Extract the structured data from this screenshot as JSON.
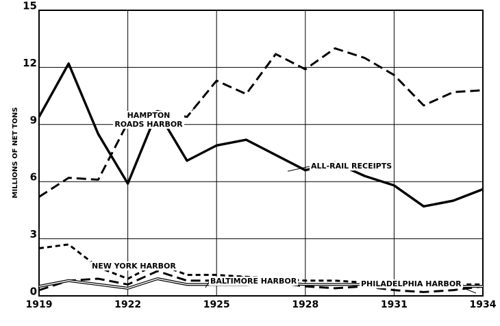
{
  "chart_data": {
    "type": "line",
    "ylabel": "MILLIONS OF NET TONS",
    "x": [
      1919,
      1920,
      1921,
      1922,
      1923,
      1924,
      1925,
      1926,
      1927,
      1928,
      1929,
      1930,
      1931,
      1932,
      1933,
      1934
    ],
    "xlim": [
      1919,
      1934
    ],
    "xticks": [
      1919,
      1922,
      1925,
      1928,
      1931,
      1934
    ],
    "ylim": [
      0,
      15
    ],
    "yticks": [
      0,
      3,
      6,
      9,
      12,
      15
    ],
    "grid": true,
    "series": [
      {
        "name": "HAMPTON ROADS HARBOR",
        "color": "#000000",
        "dash": "long",
        "values": [
          5.2,
          6.2,
          6.1,
          9.1,
          9.7,
          9.4,
          11.3,
          10.6,
          12.7,
          11.9,
          13.0,
          12.5,
          11.6,
          10.0,
          10.7,
          10.8
        ]
      },
      {
        "name": "ALL-RAIL RECEIPTS",
        "color": "#000000",
        "dash": "solid",
        "values": [
          9.4,
          12.2,
          8.5,
          5.9,
          9.7,
          7.1,
          7.9,
          8.2,
          7.4,
          6.6,
          7.0,
          6.3,
          5.8,
          4.7,
          5.0,
          5.6
        ]
      },
      {
        "name": "NEW YORK HARBOR",
        "color": "#000000",
        "dash": "short",
        "values": [
          2.5,
          2.7,
          1.5,
          0.9,
          1.7,
          1.1,
          1.1,
          1.0,
          0.9,
          0.8,
          0.8,
          0.7,
          0.7,
          0.6,
          0.6,
          0.6
        ]
      },
      {
        "name": "BALTIMORE HARBOR",
        "color": "#000000",
        "dash": "long",
        "values": [
          0.3,
          0.8,
          0.9,
          0.6,
          1.3,
          0.8,
          0.8,
          1.0,
          0.7,
          0.5,
          0.4,
          0.5,
          0.3,
          0.2,
          0.3,
          0.5
        ]
      },
      {
        "name": "PHILADELPHIA HARBOR",
        "color": "#000000",
        "dash": "double",
        "values": [
          0.5,
          0.8,
          0.6,
          0.4,
          0.9,
          0.6,
          0.6,
          0.6,
          0.7,
          0.6,
          0.6,
          0.6,
          0.6,
          0.5,
          0.5,
          0.5
        ]
      }
    ]
  }
}
